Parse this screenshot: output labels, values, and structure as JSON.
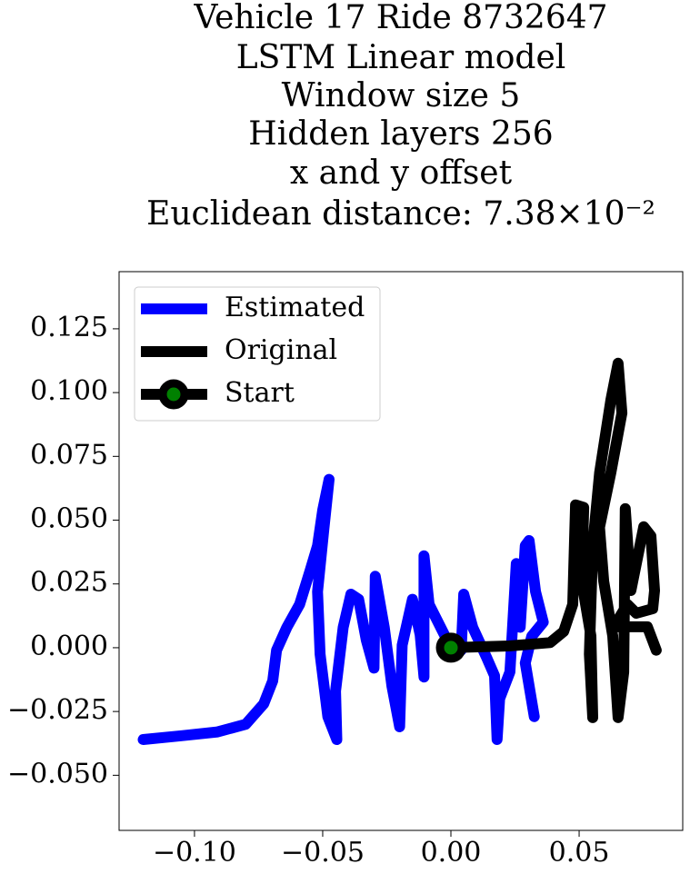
{
  "chart_data": {
    "type": "line",
    "title": [
      "Vehicle 17 Ride 8732647",
      "LSTM Linear model",
      "Window size 5",
      "Hidden layers 256",
      "x and y offset",
      "Euclidean distance: 7.38×10⁻²"
    ],
    "legend": "upper left",
    "xlim": [
      -0.1294,
      0.0904
    ],
    "ylim": [
      -0.0716,
      0.1474
    ],
    "xticks": [
      {
        "value": -0.1,
        "label": "−0.10"
      },
      {
        "value": -0.05,
        "label": "−0.05"
      },
      {
        "value": 0,
        "label": "0.00"
      },
      {
        "value": 0.05,
        "label": "0.05"
      }
    ],
    "yticks": [
      {
        "value": -0.05,
        "label": "−0.050"
      },
      {
        "value": -0.025,
        "label": "−0.025"
      },
      {
        "value": 0,
        "label": "0.000"
      },
      0.025,
      {
        "value": 0.05,
        "label": "0.050"
      },
      0.075,
      {
        "value": 0.1,
        "label": "0.100"
      },
      0.125
    ],
    "series": [
      {
        "name": "Estimated",
        "color": "#0000ff",
        "x": [
          -0.12,
          -0.105,
          -0.091,
          -0.08,
          -0.073,
          -0.0695,
          -0.068,
          -0.064,
          -0.059,
          -0.055,
          -0.052,
          -0.05,
          -0.0475,
          -0.0495,
          -0.052,
          -0.051,
          -0.048,
          -0.0445,
          -0.045,
          -0.042,
          -0.039,
          -0.036,
          -0.033,
          -0.03,
          -0.0295,
          -0.026,
          -0.023,
          -0.02,
          -0.019,
          -0.015,
          -0.012,
          -0.0105,
          -0.0105,
          -0.0085,
          -0.004,
          0,
          0.004,
          0.005,
          0.0085,
          0.014,
          0.017,
          0.018,
          0.019,
          0.023,
          0.0255,
          0.027,
          0.029,
          0.0305,
          0.033,
          0.036,
          0.0315,
          0.029,
          0.0325
        ],
        "values": [
          -0.036,
          -0.0345,
          -0.033,
          -0.03,
          -0.022,
          -0.013,
          -0.001,
          0.008,
          0.017,
          0.03,
          0.04,
          0.054,
          0.066,
          0.047,
          0.022,
          -0.0025,
          -0.027,
          -0.036,
          -0.017,
          0.008,
          0.021,
          0.019,
          0.003,
          -0.008,
          0.028,
          0.008,
          -0.015,
          -0.031,
          0.001,
          0.019,
          0.005,
          -0.0115,
          0.036,
          0.017,
          0.008,
          0,
          -0.001,
          0.021,
          0.008,
          -0.004,
          -0.011,
          -0.036,
          -0.02,
          -0.0095,
          0.033,
          0.008,
          0.04,
          0.042,
          0.022,
          0.01,
          0.0045,
          -0.006,
          -0.027
        ]
      },
      {
        "name": "Original",
        "color": "#000000",
        "x": [
          0,
          0.0227,
          0.0387,
          0.044,
          0.0475,
          0.0486,
          0.0518,
          0.051,
          0.0546,
          0.0553,
          0.054,
          0.0553,
          0.058,
          0.0624,
          0.0652,
          0.0667,
          0.0624,
          0.058,
          0.0571,
          0.0596,
          0.0631,
          0.0652,
          0.0674,
          0.068,
          0.0702,
          0.0752,
          0.078,
          0.0794,
          0.0787,
          0.0723,
          0.0688,
          0.0635,
          0.0766,
          0.0801
        ],
        "values": [
          0,
          0.0007,
          0.002,
          0.0064,
          0.017,
          0.056,
          0.055,
          0.026,
          0.0046,
          -0.0274,
          -0.0025,
          0.04,
          0.0687,
          0.0972,
          0.1115,
          0.092,
          0.0687,
          0.0474,
          0.058,
          0.026,
          0.0046,
          -0.0274,
          -0.0096,
          0.0545,
          0.0224,
          0.0474,
          0.0438,
          0.0224,
          0.0153,
          0.0135,
          0.017,
          0.0082,
          0.0082,
          -0.001
        ]
      },
      {
        "name": "Start",
        "color": "#000000",
        "marker_color": "#008000",
        "x": [
          0
        ],
        "values": [
          0
        ]
      }
    ]
  }
}
